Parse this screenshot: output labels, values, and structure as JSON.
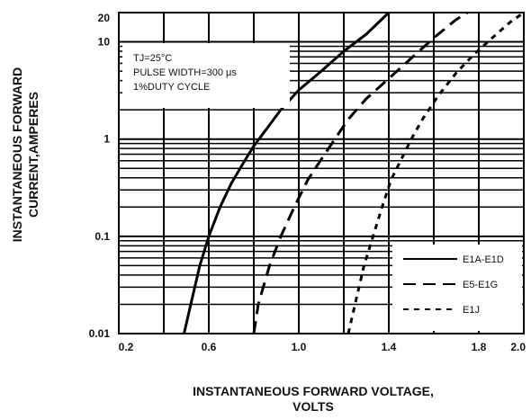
{
  "chart_data": {
    "type": "line",
    "xlabel": [
      "INSTANTANEOUS FORWARD VOLTAGE,",
      "VOLTS"
    ],
    "ylabel": [
      "INSTANTANEOUS FORWARD",
      "CURRENT,AMPERES"
    ],
    "xlim": [
      0.2,
      2.0
    ],
    "ylim": [
      0.01,
      20
    ],
    "yscale": "log",
    "grid": true,
    "x_ticks": [
      "0.2",
      "0.6",
      "1.0",
      "1.4",
      "1.8",
      "2.0"
    ],
    "x_tick_values": [
      0.2,
      0.6,
      1.0,
      1.4,
      1.8,
      2.0
    ],
    "y_ticks": [
      "0.01",
      "0.1",
      "1",
      "10",
      "20"
    ],
    "y_tick_values": [
      0.01,
      0.1,
      1,
      10,
      20
    ],
    "annotation": [
      "TJ=25°C",
      "PULSE WIDTH=300 μs",
      "1%DUTY CYCLE"
    ],
    "legend_position": "bottom-right",
    "series": [
      {
        "name": "E1A-E1D",
        "style": "solid",
        "points": [
          [
            0.49,
            0.01
          ],
          [
            0.52,
            0.02
          ],
          [
            0.56,
            0.05
          ],
          [
            0.6,
            0.1
          ],
          [
            0.65,
            0.2
          ],
          [
            0.7,
            0.35
          ],
          [
            0.75,
            0.55
          ],
          [
            0.8,
            0.85
          ],
          [
            0.86,
            1.3
          ],
          [
            0.92,
            2.0
          ],
          [
            1.0,
            3.2
          ],
          [
            1.1,
            5.0
          ],
          [
            1.2,
            8.0
          ],
          [
            1.3,
            12.0
          ],
          [
            1.4,
            20.0
          ]
        ]
      },
      {
        "name": "E5-E1G",
        "style": "dashed",
        "points": [
          [
            0.8,
            0.01
          ],
          [
            0.82,
            0.02
          ],
          [
            0.87,
            0.05
          ],
          [
            0.92,
            0.1
          ],
          [
            0.98,
            0.2
          ],
          [
            1.04,
            0.38
          ],
          [
            1.1,
            0.62
          ],
          [
            1.16,
            1.0
          ],
          [
            1.22,
            1.6
          ],
          [
            1.3,
            2.6
          ],
          [
            1.4,
            4.2
          ],
          [
            1.5,
            6.8
          ],
          [
            1.6,
            11.0
          ],
          [
            1.7,
            17.0
          ],
          [
            1.75,
            20.0
          ]
        ]
      },
      {
        "name": "E1J",
        "style": "short-dashed",
        "points": [
          [
            1.22,
            0.01
          ],
          [
            1.25,
            0.02
          ],
          [
            1.29,
            0.05
          ],
          [
            1.33,
            0.1
          ],
          [
            1.37,
            0.2
          ],
          [
            1.41,
            0.38
          ],
          [
            1.46,
            0.65
          ],
          [
            1.5,
            1.0
          ],
          [
            1.55,
            1.6
          ],
          [
            1.62,
            2.8
          ],
          [
            1.7,
            4.8
          ],
          [
            1.78,
            7.5
          ],
          [
            1.86,
            11.0
          ],
          [
            1.94,
            16.0
          ],
          [
            2.0,
            20.0
          ]
        ]
      }
    ]
  }
}
